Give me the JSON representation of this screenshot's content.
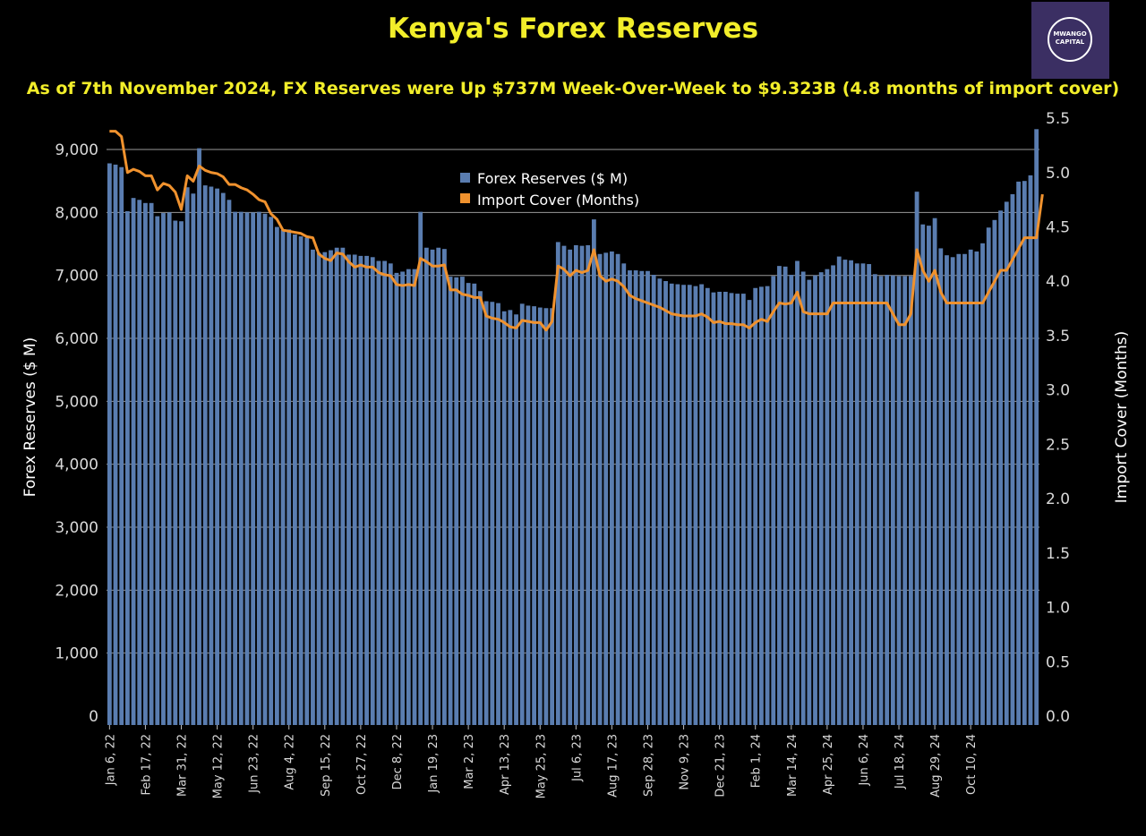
{
  "chart_data": {
    "type": "bar",
    "title": "Kenya's Forex Reserves",
    "subtitle": "As of 7th November 2024, FX Reserves were Up $737M Week-Over-Week to $9.323B (4.8 months of import cover)",
    "ylabel": "Forex Reserves ($ M)",
    "y2label": "Import Cover (Months)",
    "ylim": [
      0,
      9323
    ],
    "y2lim": [
      0,
      5.5
    ],
    "yticks": [
      0,
      1000,
      2000,
      3000,
      4000,
      5000,
      6000,
      7000,
      8000,
      9000
    ],
    "ytick_labels": [
      "0",
      "1,000",
      "2,000",
      "3,000",
      "4,000",
      "5,000",
      "6,000",
      "7,000",
      "8,000",
      "9,000"
    ],
    "y2ticks": [
      0.0,
      0.5,
      1.0,
      1.5,
      2.0,
      2.5,
      3.0,
      3.5,
      4.0,
      4.5,
      5.0,
      5.5
    ],
    "y2tick_labels": [
      "0.0",
      "0.5",
      "1.0",
      "1.5",
      "2.0",
      "2.5",
      "3.0",
      "3.5",
      "4.0",
      "4.5",
      "5.0",
      "5.5"
    ],
    "grid": true,
    "legend_position": "top-center",
    "x_tick_labels": [
      "Jan 6, 22",
      "Feb 17, 22",
      "Mar 31, 22",
      "May 12, 22",
      "Jun 23, 22",
      "Aug 4, 22",
      "Sep 15, 22",
      "Oct 27, 22",
      "Dec 8, 22",
      "Jan 19, 23",
      "Mar 2, 23",
      "Apr 13, 23",
      "May 25, 23",
      "Jul 6, 23",
      "Aug 17, 23",
      "Sep 28, 23",
      "Nov 9, 23",
      "Dec 21, 23",
      "Feb 1, 24",
      "Mar 14, 24",
      "Apr 25, 24",
      "Jun 6, 24",
      "Jul 18, 24",
      "Aug 29, 24",
      "Oct 10, 24"
    ],
    "x_tick_every": 6,
    "series": [
      {
        "name": "Forex Reserves ($ M)",
        "type": "bar",
        "axis": "left",
        "color": "#5a7db0",
        "values": [
          8780,
          8760,
          8720,
          8020,
          8230,
          8200,
          8150,
          8150,
          7940,
          7990,
          8000,
          7870,
          7860,
          8400,
          8300,
          9020,
          8430,
          8410,
          8380,
          8310,
          8200,
          8010,
          8010,
          8000,
          8000,
          8010,
          7980,
          7930,
          7770,
          7720,
          7730,
          7650,
          7620,
          7600,
          7410,
          7360,
          7370,
          7400,
          7440,
          7440,
          7330,
          7330,
          7310,
          7310,
          7290,
          7230,
          7230,
          7190,
          7040,
          7060,
          7100,
          7100,
          8010,
          7440,
          7410,
          7440,
          7420,
          6980,
          6970,
          6980,
          6880,
          6870,
          6750,
          6590,
          6580,
          6560,
          6430,
          6450,
          6380,
          6550,
          6520,
          6510,
          6490,
          6480,
          6480,
          7530,
          7470,
          7410,
          7480,
          7470,
          7480,
          7890,
          7340,
          7360,
          7380,
          7340,
          7190,
          7080,
          7080,
          7070,
          7070,
          7010,
          6950,
          6910,
          6870,
          6860,
          6850,
          6850,
          6830,
          6860,
          6800,
          6730,
          6740,
          6740,
          6720,
          6710,
          6710,
          6610,
          6800,
          6820,
          6830,
          6990,
          7150,
          7140,
          7010,
          7230,
          7060,
          6930,
          7000,
          7050,
          7100,
          7160,
          7300,
          7250,
          7240,
          7190,
          7190,
          7180,
          7020,
          6990,
          7010,
          7000,
          6990,
          6990,
          6990,
          8330,
          7810,
          7790,
          7910,
          7430,
          7320,
          7290,
          7340,
          7340,
          7410,
          7380,
          7510,
          7760,
          7880,
          8030,
          8170,
          8290,
          8490,
          8500,
          8590,
          9323
        ]
      },
      {
        "name": "Import Cover (Months)",
        "type": "line",
        "axis": "right",
        "color": "#f0922e",
        "values": [
          5.38,
          5.38,
          5.33,
          5.0,
          5.03,
          5.01,
          4.97,
          4.97,
          4.84,
          4.9,
          4.88,
          4.82,
          4.66,
          4.97,
          4.92,
          5.06,
          5.02,
          5.0,
          4.99,
          4.96,
          4.89,
          4.89,
          4.86,
          4.84,
          4.8,
          4.75,
          4.73,
          4.62,
          4.57,
          4.47,
          4.46,
          4.45,
          4.44,
          4.41,
          4.4,
          4.25,
          4.21,
          4.19,
          4.26,
          4.25,
          4.18,
          4.13,
          4.15,
          4.13,
          4.13,
          4.08,
          4.06,
          4.05,
          3.97,
          3.96,
          3.97,
          3.96,
          4.21,
          4.18,
          4.14,
          4.14,
          4.15,
          3.92,
          3.92,
          3.88,
          3.87,
          3.85,
          3.85,
          3.68,
          3.66,
          3.65,
          3.62,
          3.58,
          3.57,
          3.64,
          3.63,
          3.62,
          3.62,
          3.55,
          3.63,
          4.14,
          4.11,
          4.05,
          4.1,
          4.08,
          4.1,
          4.29,
          4.05,
          4.0,
          4.02,
          4.0,
          3.95,
          3.87,
          3.84,
          3.82,
          3.8,
          3.78,
          3.76,
          3.73,
          3.7,
          3.69,
          3.68,
          3.68,
          3.68,
          3.7,
          3.67,
          3.62,
          3.63,
          3.61,
          3.61,
          3.6,
          3.6,
          3.57,
          3.62,
          3.65,
          3.63,
          3.72,
          3.8,
          3.79,
          3.8,
          3.9,
          3.72,
          3.7,
          3.7,
          3.7,
          3.7,
          3.8,
          3.8,
          3.8,
          3.8,
          3.8,
          3.8,
          3.8,
          3.8,
          3.8,
          3.8,
          3.7,
          3.6,
          3.6,
          3.7,
          4.29,
          4.1,
          4.0,
          4.1,
          3.9,
          3.8,
          3.8,
          3.8,
          3.8,
          3.8,
          3.8,
          3.8,
          3.9,
          4.0,
          4.1,
          4.1,
          4.2,
          4.3,
          4.4,
          4.4,
          4.4,
          4.8
        ]
      }
    ]
  },
  "logo": {
    "line1": "MWANGO",
    "line2": "CAPITAL"
  }
}
